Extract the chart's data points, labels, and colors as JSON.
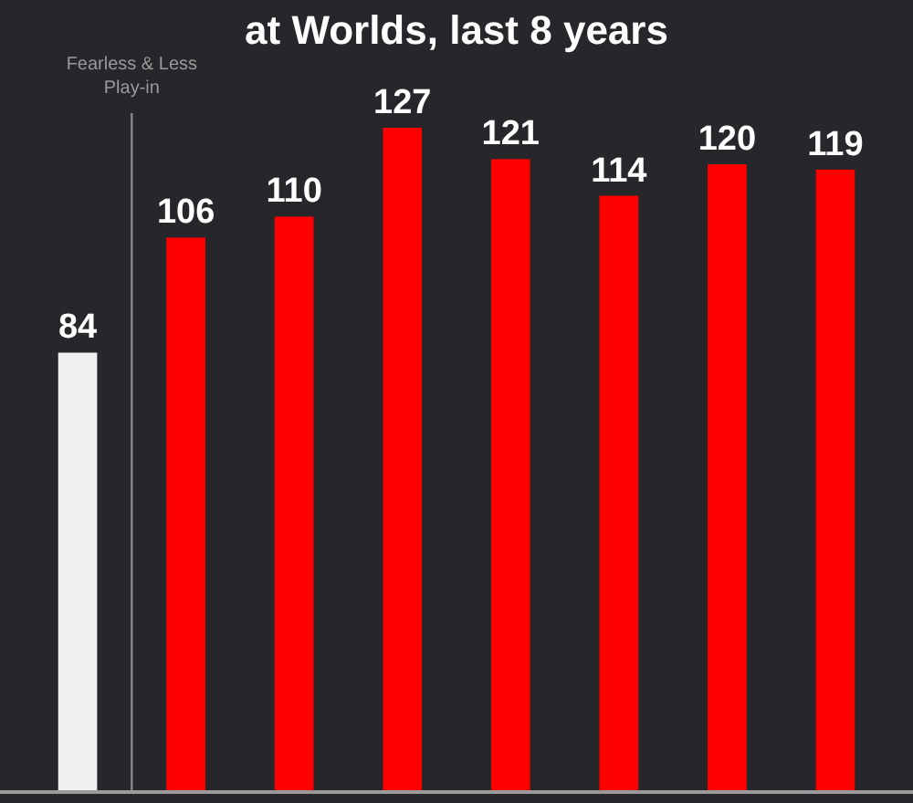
{
  "chart_data": {
    "type": "bar",
    "title": "at Worlds, last 8 years",
    "categories": [
      null,
      null,
      null,
      null,
      null,
      null,
      null,
      null
    ],
    "values": [
      84,
      106,
      110,
      127,
      121,
      114,
      120,
      119
    ],
    "colors": [
      "#f0f0f0",
      "#ff0000",
      "#ff0000",
      "#ff0000",
      "#ff0000",
      "#ff0000",
      "#ff0000",
      "#ff0000"
    ],
    "data_labels": true,
    "annotations": [
      "Fearless & Less Play-in"
    ]
  }
}
